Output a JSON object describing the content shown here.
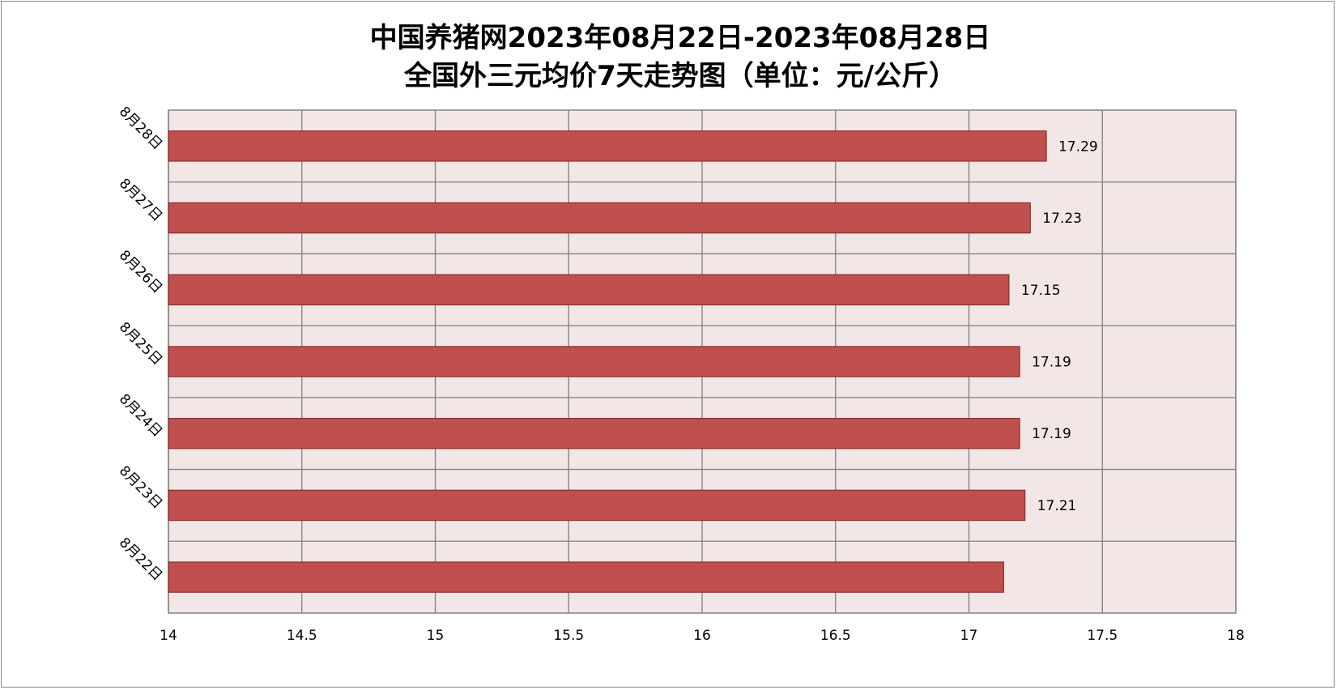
{
  "chart_data": {
    "type": "bar",
    "orientation": "horizontal",
    "title": [
      "中国养猪网2023年08月22日-2023年08月28日",
      "全国外三元均价7天走势图（单位：元/公斤）"
    ],
    "categories": [
      "8月22日",
      "8月23日",
      "8月24日",
      "8月25日",
      "8月26日",
      "8月27日",
      "8月28日"
    ],
    "values": [
      17.13,
      17.21,
      17.19,
      17.19,
      17.15,
      17.23,
      17.29
    ],
    "data_labels": [
      "",
      "17.21",
      "17.19",
      "17.19",
      "17.15",
      "17.23",
      "17.29"
    ],
    "xlim": [
      14,
      18
    ],
    "x_ticks": [
      14,
      14.5,
      15,
      15.5,
      16,
      16.5,
      17,
      17.5,
      18
    ],
    "x_tick_labels": [
      "14",
      "14.5",
      "15",
      "15.5",
      "16",
      "16.5",
      "17",
      "17.5",
      "18"
    ],
    "grid": true,
    "legend": "none",
    "bar_color": "#c0504d",
    "bar_edge_color": "#8c2f2c",
    "plot_background": "#f2e6e6",
    "grid_color": "#808080"
  }
}
